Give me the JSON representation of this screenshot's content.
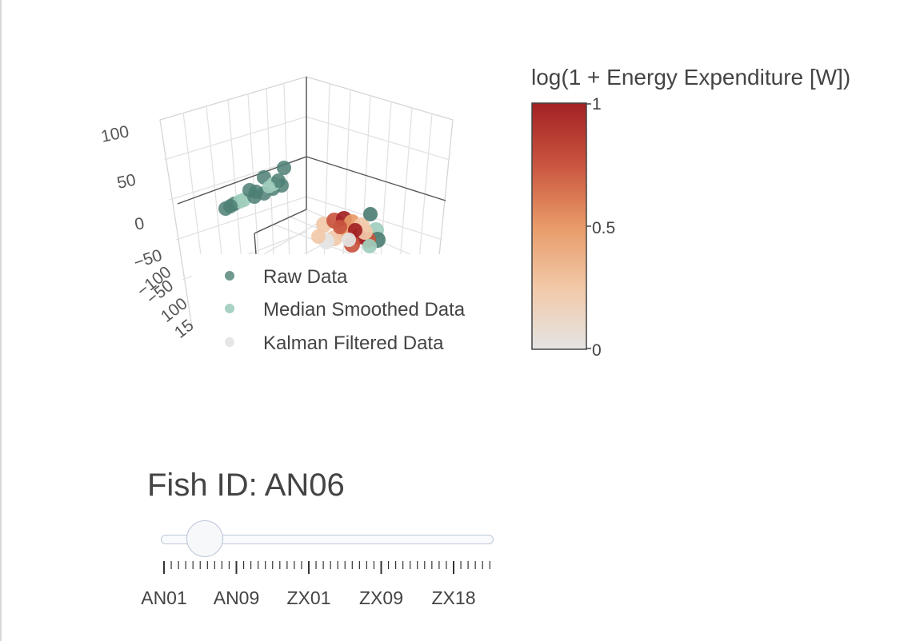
{
  "chart_data": [
    {
      "type": "scatter3d",
      "axis_ticks_visible": [
        "100",
        "50",
        "0",
        "−50",
        "−100",
        "−50",
        "100",
        "15"
      ],
      "grid": true,
      "legend_position": "bottom-right of scene",
      "series": [
        {
          "name": "Raw Data",
          "color": "#4e7f74"
        },
        {
          "name": "Median Smoothed Data",
          "color": "#9fcdbd"
        },
        {
          "name": "Kalman Filtered Data",
          "color": "#e6e6e6"
        }
      ]
    }
  ],
  "colorbar": {
    "title": "log(1 + Energy Expenditure [W])",
    "ticks": [
      "1",
      "0.5",
      "0"
    ],
    "colors": [
      "#a32124",
      "#c9553f",
      "#e89a68",
      "#f2c9a8",
      "#e4e4e4"
    ]
  },
  "slider": {
    "prefix": "Fish ID: ",
    "current": "AN06",
    "labels": [
      "AN01",
      "AN09",
      "ZX01",
      "ZX09",
      "ZX18"
    ],
    "position": 0.11
  }
}
